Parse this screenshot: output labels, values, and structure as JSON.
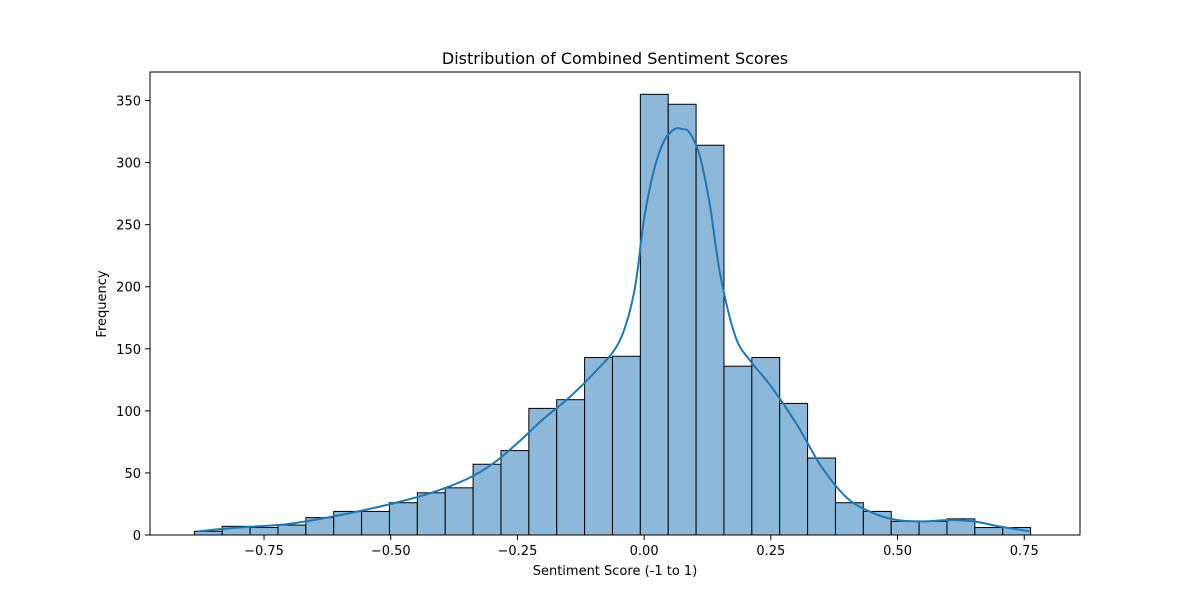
{
  "chart_data": {
    "type": "bar",
    "title": "Distribution of Combined Sentiment Scores",
    "xlabel": "Sentiment Score (-1 to 1)",
    "ylabel": "Frequency",
    "xlim": [
      -0.975,
      0.86
    ],
    "ylim": [
      0,
      373
    ],
    "grid": false,
    "legend": "none",
    "bar_color": "#8db8d9",
    "bar_edge_color": "#000000",
    "kde_color": "#1f77b4",
    "x_ticks": [
      {
        "value": -0.75,
        "label": "−0.75"
      },
      {
        "value": -0.5,
        "label": "−0.50"
      },
      {
        "value": -0.25,
        "label": "−0.25"
      },
      {
        "value": 0.0,
        "label": "0.00"
      },
      {
        "value": 0.25,
        "label": "0.25"
      },
      {
        "value": 0.5,
        "label": "0.50"
      },
      {
        "value": 0.75,
        "label": "0.75"
      }
    ],
    "y_ticks": [
      {
        "value": 0,
        "label": "0"
      },
      {
        "value": 50,
        "label": "50"
      },
      {
        "value": 100,
        "label": "100"
      },
      {
        "value": 150,
        "label": "150"
      },
      {
        "value": 200,
        "label": "200"
      },
      {
        "value": 250,
        "label": "250"
      },
      {
        "value": 300,
        "label": "300"
      },
      {
        "value": 350,
        "label": "350"
      }
    ],
    "bins": [
      {
        "x0": -0.8875,
        "x1": -0.8325,
        "count": 3
      },
      {
        "x0": -0.8325,
        "x1": -0.7775,
        "count": 7
      },
      {
        "x0": -0.7775,
        "x1": -0.7225,
        "count": 6
      },
      {
        "x0": -0.7225,
        "x1": -0.6675,
        "count": 8
      },
      {
        "x0": -0.6675,
        "x1": -0.6125,
        "count": 14
      },
      {
        "x0": -0.6125,
        "x1": -0.5575,
        "count": 19
      },
      {
        "x0": -0.5575,
        "x1": -0.5025,
        "count": 19
      },
      {
        "x0": -0.5025,
        "x1": -0.4475,
        "count": 26
      },
      {
        "x0": -0.4475,
        "x1": -0.3925,
        "count": 34
      },
      {
        "x0": -0.3925,
        "x1": -0.3375,
        "count": 38
      },
      {
        "x0": -0.3375,
        "x1": -0.2825,
        "count": 57
      },
      {
        "x0": -0.2825,
        "x1": -0.2275,
        "count": 68
      },
      {
        "x0": -0.2275,
        "x1": -0.1725,
        "count": 102
      },
      {
        "x0": -0.1725,
        "x1": -0.1175,
        "count": 109
      },
      {
        "x0": -0.1175,
        "x1": -0.0625,
        "count": 143
      },
      {
        "x0": -0.0625,
        "x1": -0.0075,
        "count": 144
      },
      {
        "x0": -0.0075,
        "x1": 0.0475,
        "count": 355
      },
      {
        "x0": 0.0475,
        "x1": 0.1025,
        "count": 347
      },
      {
        "x0": 0.1025,
        "x1": 0.1575,
        "count": 314
      },
      {
        "x0": 0.1575,
        "x1": 0.2125,
        "count": 136
      },
      {
        "x0": 0.2125,
        "x1": 0.2675,
        "count": 143
      },
      {
        "x0": 0.2675,
        "x1": 0.3225,
        "count": 106
      },
      {
        "x0": 0.3225,
        "x1": 0.3775,
        "count": 62
      },
      {
        "x0": 0.3775,
        "x1": 0.4325,
        "count": 26
      },
      {
        "x0": 0.4325,
        "x1": 0.4875,
        "count": 19
      },
      {
        "x0": 0.4875,
        "x1": 0.5425,
        "count": 11
      },
      {
        "x0": 0.5425,
        "x1": 0.5975,
        "count": 11
      },
      {
        "x0": 0.5975,
        "x1": 0.6525,
        "count": 13
      },
      {
        "x0": 0.6525,
        "x1": 0.7075,
        "count": 6
      },
      {
        "x0": 0.7075,
        "x1": 0.7625,
        "count": 6
      }
    ],
    "kde": {
      "x": [
        -0.88,
        -0.8,
        -0.7,
        -0.6,
        -0.5,
        -0.42,
        -0.35,
        -0.3,
        -0.25,
        -0.2,
        -0.15,
        -0.1,
        -0.05,
        -0.02,
        0.0,
        0.02,
        0.04,
        0.06,
        0.075,
        0.09,
        0.11,
        0.13,
        0.15,
        0.18,
        0.21,
        0.25,
        0.3,
        0.35,
        0.4,
        0.45,
        0.5,
        0.55,
        0.6,
        0.65,
        0.7,
        0.76
      ],
      "y": [
        3,
        6,
        9,
        16,
        25,
        34,
        45,
        57,
        74,
        93,
        110,
        130,
        155,
        195,
        255,
        295,
        318,
        327,
        327,
        324,
        305,
        265,
        210,
        160,
        140,
        120,
        90,
        55,
        30,
        18,
        12,
        11,
        12,
        11,
        7,
        3
      ]
    }
  }
}
